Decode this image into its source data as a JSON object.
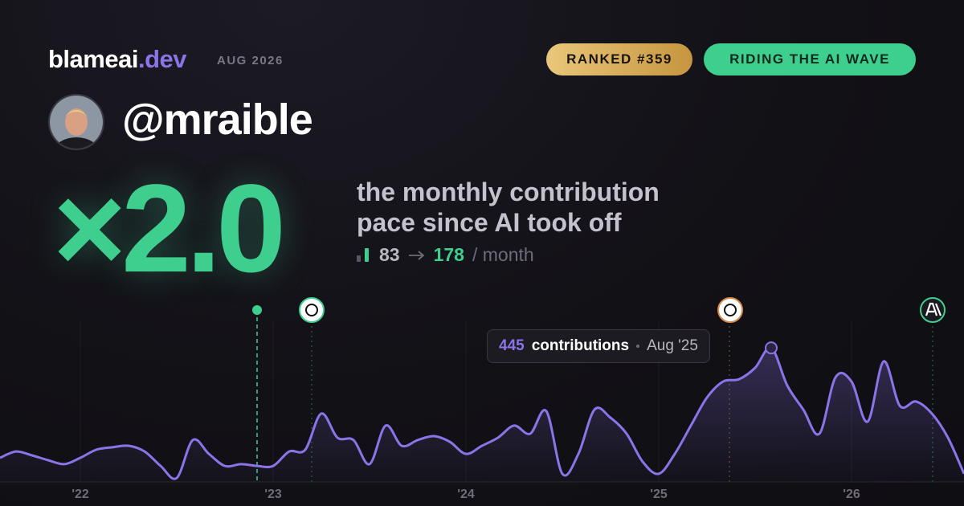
{
  "header": {
    "brand_name": "blameai",
    "brand_tld": ".dev",
    "date": "AUG 2026",
    "badges": [
      "RANKED #359",
      "RIDING THE AI WAVE"
    ]
  },
  "profile": {
    "handle": "@mraible"
  },
  "stat": {
    "multiplier": "×2.0",
    "caption_line1": "the monthly contribution",
    "caption_line2": "pace since AI took off",
    "before": 83,
    "after": 178,
    "unit": "/ month"
  },
  "chart_data": {
    "type": "line",
    "categories": [
      null,
      null,
      null,
      null,
      null,
      "'22",
      null,
      null,
      null,
      null,
      null,
      null,
      null,
      null,
      null,
      null,
      null,
      "'23",
      null,
      null,
      null,
      null,
      null,
      null,
      null,
      null,
      null,
      null,
      null,
      "'24",
      null,
      null,
      null,
      null,
      null,
      null,
      null,
      null,
      null,
      null,
      null,
      "'25",
      null,
      null,
      null,
      null,
      null,
      null,
      null,
      null,
      null,
      null,
      null,
      "'26",
      null,
      null,
      null,
      null,
      null,
      null,
      null
    ],
    "series": [
      {
        "name": "contributions",
        "color": "#8b74e8",
        "values": [
          80,
          101,
          88,
          72,
          59,
          80,
          107,
          115,
          120,
          101,
          53,
          13,
          139,
          93,
          53,
          59,
          53,
          53,
          101,
          107,
          227,
          147,
          139,
          59,
          187,
          120,
          139,
          152,
          133,
          93,
          120,
          147,
          187,
          160,
          235,
          27,
          93,
          240,
          213,
          160,
          67,
          27,
          93,
          187,
          280,
          333,
          341,
          379,
          445,
          320,
          240,
          160,
          347,
          333,
          200,
          400,
          253,
          267,
          227,
          147,
          27
        ]
      }
    ],
    "ylim": [
      0,
      640
    ],
    "tooltip": {
      "unit": "contributions",
      "date": "Aug '25"
    }
  }
}
